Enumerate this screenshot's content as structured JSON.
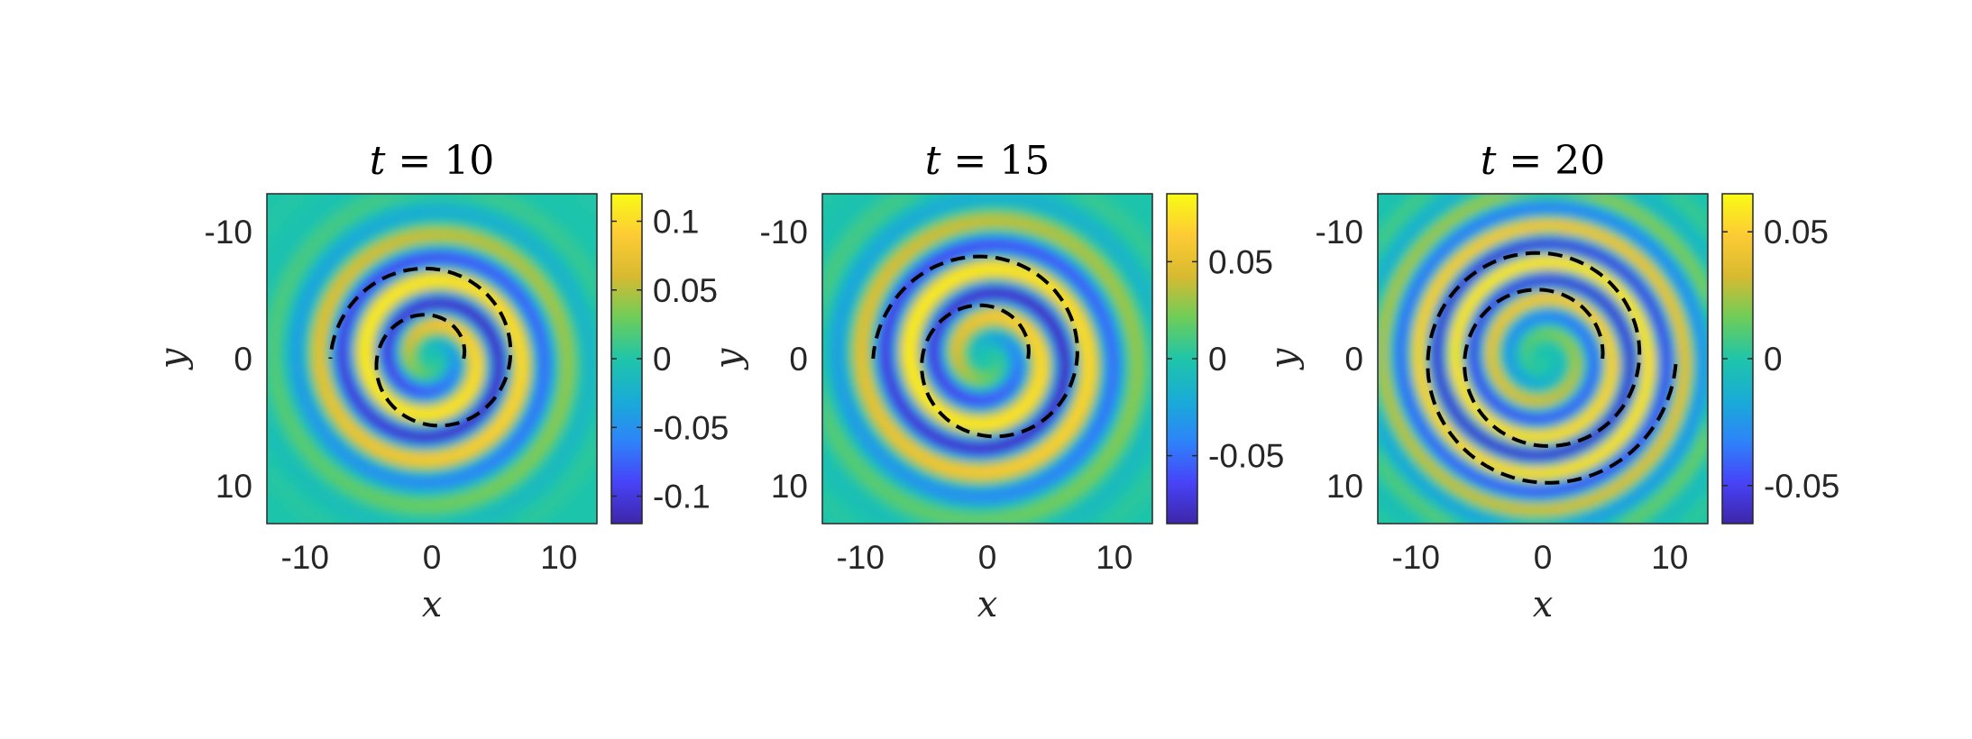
{
  "figure": {
    "colormap": [
      "#3e26a8",
      "#4743f8",
      "#2d84f9",
      "#19acd6",
      "#1fc5a9",
      "#6ecd59",
      "#d8ba30",
      "#fdcb34",
      "#f9fb15"
    ],
    "contour_color": "#000000"
  },
  "chart_data": [
    {
      "type": "heatmap",
      "title": "t = 10",
      "title_var": "t",
      "title_value": "10",
      "xlabel": "x",
      "ylabel": "y",
      "xlim": [
        -13,
        13
      ],
      "ylim": [
        -13,
        13
      ],
      "y_reversed": true,
      "xticks": [
        -10,
        0,
        10
      ],
      "yticks": [
        -10,
        0,
        10
      ],
      "color_range": [
        -0.12,
        0.12
      ],
      "colorbar_ticks": [
        {
          "value": 0.1,
          "label": "0.1"
        },
        {
          "value": 0.05,
          "label": "0.05"
        },
        {
          "value": 0,
          "label": "0"
        },
        {
          "value": -0.05,
          "label": "-0.05"
        },
        {
          "value": -0.1,
          "label": "-0.1"
        }
      ],
      "dashed_spiral": {
        "inner_radius": 2.5,
        "outer_radius": 8.0,
        "turns": 1.5,
        "start_angle_deg": 0,
        "end_angle_deg": 180
      },
      "wave_amplitude": 0.12
    },
    {
      "type": "heatmap",
      "title": "t = 15",
      "title_var": "t",
      "title_value": "15",
      "xlabel": "x",
      "ylabel": "y",
      "xlim": [
        -13,
        13
      ],
      "ylim": [
        -13,
        13
      ],
      "y_reversed": true,
      "xticks": [
        -10,
        0,
        10
      ],
      "yticks": [
        -10,
        0,
        10
      ],
      "color_range": [
        -0.085,
        0.085
      ],
      "colorbar_ticks": [
        {
          "value": 0.05,
          "label": "0.05"
        },
        {
          "value": 0,
          "label": "0"
        },
        {
          "value": -0.05,
          "label": "-0.05"
        }
      ],
      "dashed_spiral": {
        "inner_radius": 3.2,
        "outer_radius": 9.0,
        "turns": 1.5,
        "start_angle_deg": 0,
        "end_angle_deg": 0
      },
      "wave_amplitude": 0.085
    },
    {
      "type": "heatmap",
      "title": "t = 20",
      "title_var": "t",
      "title_value": "20",
      "xlabel": "x",
      "ylabel": "y",
      "xlim": [
        -13,
        13
      ],
      "ylim": [
        -13,
        13
      ],
      "y_reversed": true,
      "xticks": [
        -10,
        0,
        10
      ],
      "yticks": [
        -10,
        0,
        10
      ],
      "color_range": [
        -0.065,
        0.065
      ],
      "colorbar_ticks": [
        {
          "value": 0.05,
          "label": "0.05"
        },
        {
          "value": 0,
          "label": "0"
        },
        {
          "value": -0.05,
          "label": "-0.05"
        }
      ],
      "dashed_spiral": {
        "inner_radius": 4.7,
        "outer_radius": 10.5,
        "turns": 2,
        "start_angle_deg": 0,
        "end_angle_deg": 180
      },
      "wave_amplitude": 0.065
    }
  ]
}
